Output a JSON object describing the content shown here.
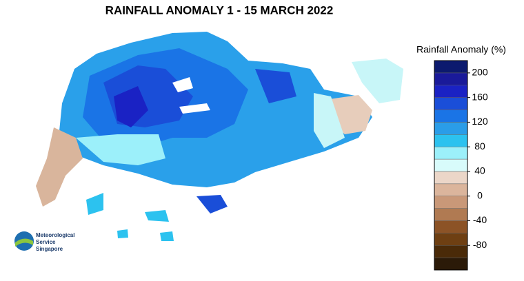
{
  "chart_data": {
    "type": "colorbar",
    "title": "RAINFALL ANOMALY 1 - 15 MARCH 2022",
    "legend_title": "Rainfall Anomaly (%)",
    "ylim": [
      -120,
      220
    ],
    "yticks": [
      200,
      160,
      120,
      80,
      40,
      0,
      -40,
      -80
    ],
    "colors": [
      "#2b1a08",
      "#4a2a08",
      "#6e3f12",
      "#8c5326",
      "#b07a52",
      "#c99878",
      "#dbb59c",
      "#ebd6c8",
      "#d8fbfb",
      "#9cf0fa",
      "#2cc2ef",
      "#2a9de8",
      "#1a74e6",
      "#1a4ed8",
      "#1a22c4",
      "#1a1a9a",
      "#0c1a6e"
    ]
  },
  "logo": {
    "lines": [
      "Meteorological",
      "Service",
      "Singapore"
    ]
  }
}
